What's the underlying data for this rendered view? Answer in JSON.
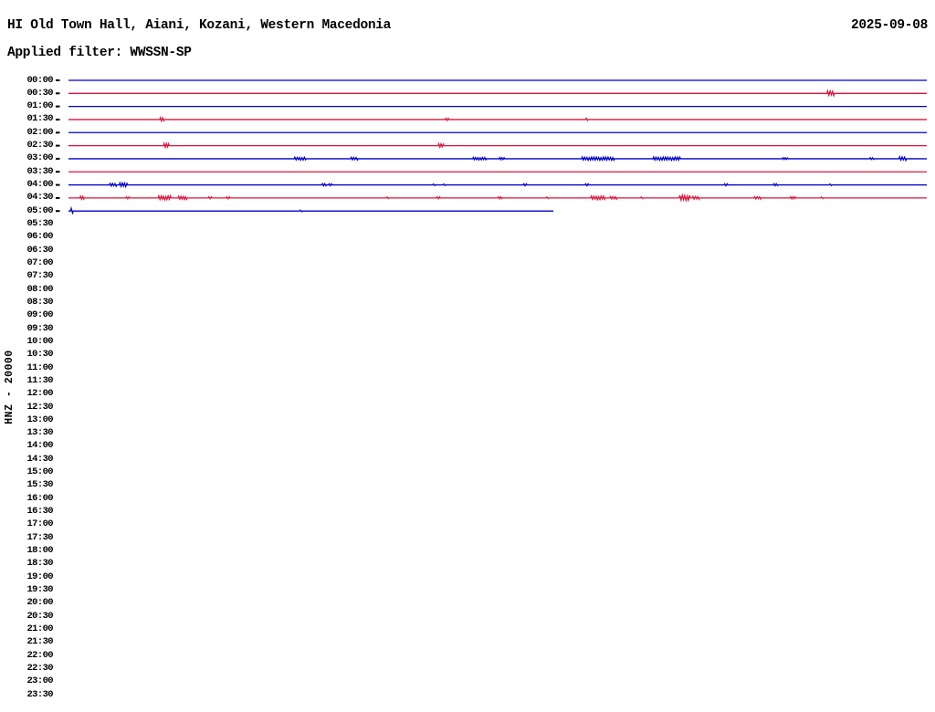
{
  "header": {
    "station_title": "HI Old Town Hall, Aiani, Kozani, Western Macedonia",
    "date": "2025-09-08",
    "filter_line": "Applied filter: WWSSN-SP"
  },
  "chart_data": {
    "type": "line",
    "subtype": "helicorder-drum-plot",
    "title": "HI Old Town Hall, Aiani, Kozani, Western Macedonia",
    "date": "2025-09-08",
    "applied_filter": "WWSSN-SP",
    "channel_axis_label": "HNZ - 20000",
    "row_interval_minutes": 30,
    "legend_position": "none",
    "grid": false,
    "colors": {
      "trace_blue": "#0000cd",
      "trace_red": "#dc143c",
      "text": "#000000",
      "tick": "#000000",
      "background": "#ffffff"
    },
    "time_labels": [
      "00:00",
      "00:30",
      "01:00",
      "01:30",
      "02:00",
      "02:30",
      "03:00",
      "03:30",
      "04:00",
      "04:30",
      "05:00",
      "05:30",
      "06:00",
      "06:30",
      "07:00",
      "07:30",
      "08:00",
      "08:30",
      "09:00",
      "09:30",
      "10:00",
      "10:30",
      "11:00",
      "11:30",
      "12:00",
      "12:30",
      "13:00",
      "13:30",
      "14:00",
      "14:30",
      "15:00",
      "15:30",
      "16:00",
      "16:30",
      "17:00",
      "17:30",
      "18:00",
      "18:30",
      "19:00",
      "19:30",
      "20:00",
      "20:30",
      "21:00",
      "21:30",
      "22:00",
      "22:30",
      "23:00",
      "23:30"
    ],
    "traces": [
      {
        "row": 0,
        "label": "00:00",
        "color": "blue",
        "end_frac": 1,
        "events": []
      },
      {
        "row": 1,
        "label": "00:30",
        "color": "red",
        "end_frac": 1,
        "events": [
          {
            "p": 0.888,
            "a": 2.6,
            "w": 8
          }
        ]
      },
      {
        "row": 2,
        "label": "01:00",
        "color": "blue",
        "end_frac": 1,
        "events": []
      },
      {
        "row": 3,
        "label": "01:30",
        "color": "red",
        "end_frac": 1,
        "events": [
          {
            "p": 0.109,
            "a": 2.0,
            "w": 5
          },
          {
            "p": 0.441,
            "a": 1.4,
            "w": 4
          },
          {
            "p": 0.604,
            "a": 1.4,
            "w": 3
          }
        ]
      },
      {
        "row": 4,
        "label": "02:00",
        "color": "blue",
        "end_frac": 1,
        "events": []
      },
      {
        "row": 5,
        "label": "02:30",
        "color": "red",
        "end_frac": 1,
        "events": [
          {
            "p": 0.114,
            "a": 2.4,
            "w": 6
          },
          {
            "p": 0.434,
            "a": 2.0,
            "w": 6
          }
        ]
      },
      {
        "row": 6,
        "label": "03:00",
        "color": "blue",
        "end_frac": 1,
        "events": [
          {
            "p": 0.27,
            "a": 1.6,
            "w": 13
          },
          {
            "p": 0.333,
            "a": 1.5,
            "w": 8
          },
          {
            "p": 0.479,
            "a": 1.4,
            "w": 15
          },
          {
            "p": 0.505,
            "a": 1.3,
            "w": 6
          },
          {
            "p": 0.617,
            "a": 1.8,
            "w": 36
          },
          {
            "p": 0.697,
            "a": 1.8,
            "w": 30
          },
          {
            "p": 0.835,
            "a": 1.1,
            "w": 6
          },
          {
            "p": 0.936,
            "a": 1.1,
            "w": 5
          },
          {
            "p": 0.972,
            "a": 2.0,
            "w": 8
          }
        ]
      },
      {
        "row": 7,
        "label": "03:30",
        "color": "red",
        "end_frac": 1,
        "events": []
      },
      {
        "row": 8,
        "label": "04:00",
        "color": "blue",
        "end_frac": 1,
        "events": [
          {
            "p": 0.052,
            "a": 1.6,
            "w": 8
          },
          {
            "p": 0.064,
            "a": 2.2,
            "w": 9
          },
          {
            "p": 0.298,
            "a": 1.4,
            "w": 5
          },
          {
            "p": 0.305,
            "a": 1.2,
            "w": 4
          },
          {
            "p": 0.426,
            "a": 1.0,
            "w": 3
          },
          {
            "p": 0.438,
            "a": 1.0,
            "w": 3
          },
          {
            "p": 0.532,
            "a": 1.2,
            "w": 4
          },
          {
            "p": 0.604,
            "a": 1.2,
            "w": 4
          },
          {
            "p": 0.766,
            "a": 1.2,
            "w": 4
          },
          {
            "p": 0.824,
            "a": 1.2,
            "w": 5
          },
          {
            "p": 0.888,
            "a": 1.0,
            "w": 3
          }
        ]
      },
      {
        "row": 9,
        "label": "04:30",
        "color": "red",
        "end_frac": 1,
        "events": [
          {
            "p": 0.016,
            "a": 1.8,
            "w": 5
          },
          {
            "p": 0.069,
            "a": 1.2,
            "w": 4
          },
          {
            "p": 0.112,
            "a": 2.2,
            "w": 14
          },
          {
            "p": 0.133,
            "a": 1.8,
            "w": 10
          },
          {
            "p": 0.165,
            "a": 1.2,
            "w": 4
          },
          {
            "p": 0.186,
            "a": 1.2,
            "w": 4
          },
          {
            "p": 0.372,
            "a": 1.0,
            "w": 3
          },
          {
            "p": 0.431,
            "a": 1.2,
            "w": 4
          },
          {
            "p": 0.503,
            "a": 1.2,
            "w": 5
          },
          {
            "p": 0.558,
            "a": 1.0,
            "w": 3
          },
          {
            "p": 0.617,
            "a": 2.0,
            "w": 16
          },
          {
            "p": 0.635,
            "a": 1.5,
            "w": 8
          },
          {
            "p": 0.668,
            "a": 1.0,
            "w": 3
          },
          {
            "p": 0.718,
            "a": 3.0,
            "w": 12
          },
          {
            "p": 0.731,
            "a": 1.6,
            "w": 8
          },
          {
            "p": 0.803,
            "a": 1.4,
            "w": 8
          },
          {
            "p": 0.844,
            "a": 1.3,
            "w": 6
          },
          {
            "p": 0.878,
            "a": 1.0,
            "w": 3
          }
        ]
      },
      {
        "row": 10,
        "label": "05:00",
        "color": "blue",
        "end_frac": 0.565,
        "events": [
          {
            "p": 0.004,
            "a": 3.0,
            "w": 3
          },
          {
            "p": 0.271,
            "a": 1.0,
            "w": 3
          }
        ]
      }
    ]
  }
}
